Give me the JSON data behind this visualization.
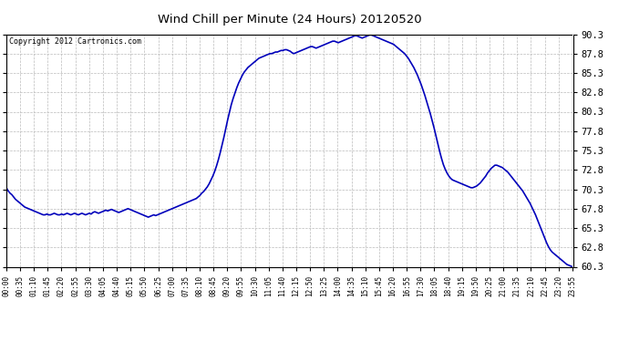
{
  "title": "Wind Chill per Minute (24 Hours) 20120520",
  "copyright": "Copyright 2012 Cartronics.com",
  "line_color": "#0000bb",
  "background_color": "#ffffff",
  "grid_color": "#bbbbbb",
  "ylim": [
    60.3,
    90.3
  ],
  "yticks": [
    60.3,
    62.8,
    65.3,
    67.8,
    70.3,
    72.8,
    75.3,
    77.8,
    80.3,
    82.8,
    85.3,
    87.8,
    90.3
  ],
  "xtick_labels": [
    "00:00",
    "00:35",
    "01:10",
    "01:45",
    "02:20",
    "02:55",
    "03:30",
    "04:05",
    "04:40",
    "05:15",
    "05:50",
    "06:25",
    "07:00",
    "07:35",
    "08:10",
    "08:45",
    "09:20",
    "09:55",
    "10:30",
    "11:05",
    "11:40",
    "12:15",
    "12:50",
    "13:25",
    "14:00",
    "14:35",
    "15:10",
    "15:45",
    "16:20",
    "16:55",
    "17:30",
    "18:05",
    "18:40",
    "19:15",
    "19:50",
    "20:25",
    "21:00",
    "21:35",
    "22:10",
    "22:45",
    "23:20",
    "23:55"
  ],
  "data_points": [
    [
      0,
      70.5
    ],
    [
      20,
      70.1
    ],
    [
      40,
      69.8
    ],
    [
      60,
      69.6
    ],
    [
      80,
      69.3
    ],
    [
      100,
      69.0
    ],
    [
      120,
      68.8
    ],
    [
      140,
      68.6
    ],
    [
      160,
      68.4
    ],
    [
      180,
      68.2
    ],
    [
      200,
      68.0
    ],
    [
      220,
      67.9
    ],
    [
      240,
      67.8
    ],
    [
      260,
      67.7
    ],
    [
      280,
      67.6
    ],
    [
      300,
      67.5
    ],
    [
      320,
      67.4
    ],
    [
      340,
      67.3
    ],
    [
      360,
      67.2
    ],
    [
      380,
      67.1
    ],
    [
      400,
      67.0
    ],
    [
      420,
      67.0
    ],
    [
      440,
      67.1
    ],
    [
      460,
      67.0
    ],
    [
      480,
      67.0
    ],
    [
      500,
      67.1
    ],
    [
      520,
      67.2
    ],
    [
      540,
      67.1
    ],
    [
      560,
      67.0
    ],
    [
      580,
      67.0
    ],
    [
      600,
      67.1
    ],
    [
      620,
      67.0
    ],
    [
      640,
      67.1
    ],
    [
      660,
      67.2
    ],
    [
      680,
      67.1
    ],
    [
      700,
      67.0
    ],
    [
      720,
      67.1
    ],
    [
      740,
      67.2
    ],
    [
      760,
      67.1
    ],
    [
      780,
      67.0
    ],
    [
      800,
      67.1
    ],
    [
      820,
      67.2
    ],
    [
      840,
      67.1
    ],
    [
      860,
      67.0
    ],
    [
      880,
      67.1
    ],
    [
      900,
      67.2
    ],
    [
      920,
      67.1
    ],
    [
      940,
      67.3
    ],
    [
      960,
      67.4
    ],
    [
      980,
      67.3
    ],
    [
      1000,
      67.2
    ],
    [
      1020,
      67.3
    ],
    [
      1040,
      67.4
    ],
    [
      1060,
      67.5
    ],
    [
      1080,
      67.6
    ],
    [
      1100,
      67.5
    ],
    [
      1120,
      67.6
    ],
    [
      1140,
      67.7
    ],
    [
      1160,
      67.6
    ],
    [
      1180,
      67.5
    ],
    [
      1200,
      67.4
    ],
    [
      1220,
      67.3
    ],
    [
      1240,
      67.4
    ],
    [
      1260,
      67.5
    ],
    [
      1280,
      67.6
    ],
    [
      1300,
      67.7
    ],
    [
      1320,
      67.8
    ],
    [
      1340,
      67.7
    ],
    [
      1360,
      67.6
    ],
    [
      1380,
      67.5
    ],
    [
      1400,
      67.4
    ],
    [
      1420,
      67.3
    ],
    [
      1440,
      67.2
    ],
    [
      1460,
      67.1
    ],
    [
      1480,
      67.0
    ],
    [
      1500,
      66.9
    ],
    [
      1520,
      66.8
    ],
    [
      1540,
      66.7
    ],
    [
      1560,
      66.8
    ],
    [
      1580,
      66.9
    ],
    [
      1600,
      67.0
    ],
    [
      1620,
      66.9
    ],
    [
      1640,
      67.0
    ],
    [
      1660,
      67.1
    ],
    [
      1680,
      67.2
    ],
    [
      1700,
      67.3
    ],
    [
      1720,
      67.4
    ],
    [
      1740,
      67.5
    ],
    [
      1760,
      67.6
    ],
    [
      1780,
      67.7
    ],
    [
      1800,
      67.8
    ],
    [
      1820,
      67.9
    ],
    [
      1840,
      68.0
    ],
    [
      1860,
      68.1
    ],
    [
      1880,
      68.2
    ],
    [
      1900,
      68.3
    ],
    [
      1920,
      68.4
    ],
    [
      1940,
      68.5
    ],
    [
      1960,
      68.6
    ],
    [
      1980,
      68.7
    ],
    [
      2000,
      68.8
    ],
    [
      2020,
      68.9
    ],
    [
      2040,
      69.0
    ],
    [
      2060,
      69.1
    ],
    [
      2080,
      69.3
    ],
    [
      2100,
      69.5
    ],
    [
      2120,
      69.8
    ],
    [
      2140,
      70.0
    ],
    [
      2160,
      70.3
    ],
    [
      2180,
      70.6
    ],
    [
      2200,
      71.0
    ],
    [
      2220,
      71.5
    ],
    [
      2240,
      72.0
    ],
    [
      2260,
      72.6
    ],
    [
      2280,
      73.3
    ],
    [
      2300,
      74.1
    ],
    [
      2320,
      75.0
    ],
    [
      2340,
      76.0
    ],
    [
      2360,
      77.0
    ],
    [
      2380,
      78.1
    ],
    [
      2400,
      79.2
    ],
    [
      2420,
      80.2
    ],
    [
      2440,
      81.2
    ],
    [
      2460,
      82.0
    ],
    [
      2480,
      82.7
    ],
    [
      2500,
      83.4
    ],
    [
      2520,
      84.0
    ],
    [
      2540,
      84.5
    ],
    [
      2560,
      85.0
    ],
    [
      2580,
      85.4
    ],
    [
      2600,
      85.7
    ],
    [
      2620,
      86.0
    ],
    [
      2640,
      86.2
    ],
    [
      2660,
      86.4
    ],
    [
      2680,
      86.6
    ],
    [
      2700,
      86.8
    ],
    [
      2720,
      87.0
    ],
    [
      2740,
      87.2
    ],
    [
      2760,
      87.3
    ],
    [
      2780,
      87.4
    ],
    [
      2800,
      87.5
    ],
    [
      2820,
      87.6
    ],
    [
      2840,
      87.7
    ],
    [
      2860,
      87.8
    ],
    [
      2880,
      87.8
    ],
    [
      2900,
      87.9
    ],
    [
      2920,
      88.0
    ],
    [
      2940,
      88.0
    ],
    [
      2960,
      88.1
    ],
    [
      2980,
      88.2
    ],
    [
      3000,
      88.2
    ],
    [
      3020,
      88.3
    ],
    [
      3040,
      88.3
    ],
    [
      3060,
      88.2
    ],
    [
      3080,
      88.1
    ],
    [
      3100,
      87.9
    ],
    [
      3120,
      87.8
    ],
    [
      3140,
      87.9
    ],
    [
      3160,
      88.0
    ],
    [
      3180,
      88.1
    ],
    [
      3200,
      88.2
    ],
    [
      3220,
      88.3
    ],
    [
      3240,
      88.4
    ],
    [
      3260,
      88.5
    ],
    [
      3280,
      88.6
    ],
    [
      3300,
      88.7
    ],
    [
      3320,
      88.7
    ],
    [
      3340,
      88.6
    ],
    [
      3360,
      88.5
    ],
    [
      3380,
      88.6
    ],
    [
      3400,
      88.7
    ],
    [
      3420,
      88.8
    ],
    [
      3440,
      88.9
    ],
    [
      3460,
      89.0
    ],
    [
      3480,
      89.1
    ],
    [
      3500,
      89.2
    ],
    [
      3520,
      89.3
    ],
    [
      3540,
      89.4
    ],
    [
      3560,
      89.4
    ],
    [
      3580,
      89.3
    ],
    [
      3600,
      89.2
    ],
    [
      3620,
      89.3
    ],
    [
      3640,
      89.4
    ],
    [
      3660,
      89.5
    ],
    [
      3680,
      89.6
    ],
    [
      3700,
      89.7
    ],
    [
      3720,
      89.8
    ],
    [
      3740,
      89.9
    ],
    [
      3760,
      90.0
    ],
    [
      3780,
      90.1
    ],
    [
      3800,
      90.1
    ],
    [
      3820,
      90.0
    ],
    [
      3840,
      89.9
    ],
    [
      3860,
      89.8
    ],
    [
      3880,
      89.9
    ],
    [
      3900,
      90.0
    ],
    [
      3920,
      90.1
    ],
    [
      3940,
      90.2
    ],
    [
      3960,
      90.2
    ],
    [
      3980,
      90.1
    ],
    [
      4000,
      90.0
    ],
    [
      4020,
      89.9
    ],
    [
      4040,
      89.8
    ],
    [
      4060,
      89.7
    ],
    [
      4080,
      89.6
    ],
    [
      4100,
      89.5
    ],
    [
      4120,
      89.4
    ],
    [
      4140,
      89.3
    ],
    [
      4160,
      89.2
    ],
    [
      4180,
      89.1
    ],
    [
      4200,
      89.0
    ],
    [
      4220,
      88.8
    ],
    [
      4240,
      88.6
    ],
    [
      4260,
      88.4
    ],
    [
      4280,
      88.2
    ],
    [
      4300,
      88.0
    ],
    [
      4320,
      87.8
    ],
    [
      4340,
      87.5
    ],
    [
      4360,
      87.2
    ],
    [
      4380,
      86.8
    ],
    [
      4400,
      86.4
    ],
    [
      4420,
      86.0
    ],
    [
      4440,
      85.5
    ],
    [
      4460,
      85.0
    ],
    [
      4480,
      84.4
    ],
    [
      4500,
      83.8
    ],
    [
      4520,
      83.1
    ],
    [
      4540,
      82.4
    ],
    [
      4560,
      81.6
    ],
    [
      4580,
      80.8
    ],
    [
      4600,
      80.0
    ],
    [
      4620,
      79.1
    ],
    [
      4640,
      78.2
    ],
    [
      4660,
      77.2
    ],
    [
      4680,
      76.2
    ],
    [
      4700,
      75.2
    ],
    [
      4720,
      74.3
    ],
    [
      4740,
      73.5
    ],
    [
      4760,
      72.9
    ],
    [
      4780,
      72.4
    ],
    [
      4800,
      72.0
    ],
    [
      4820,
      71.7
    ],
    [
      4840,
      71.5
    ],
    [
      4860,
      71.4
    ],
    [
      4880,
      71.3
    ],
    [
      4900,
      71.2
    ],
    [
      4920,
      71.1
    ],
    [
      4940,
      71.0
    ],
    [
      4960,
      70.9
    ],
    [
      4980,
      70.8
    ],
    [
      5000,
      70.7
    ],
    [
      5020,
      70.6
    ],
    [
      5040,
      70.5
    ],
    [
      5060,
      70.5
    ],
    [
      5080,
      70.6
    ],
    [
      5100,
      70.7
    ],
    [
      5120,
      70.9
    ],
    [
      5140,
      71.1
    ],
    [
      5160,
      71.4
    ],
    [
      5180,
      71.7
    ],
    [
      5200,
      72.0
    ],
    [
      5220,
      72.4
    ],
    [
      5240,
      72.7
    ],
    [
      5260,
      73.0
    ],
    [
      5280,
      73.2
    ],
    [
      5300,
      73.4
    ],
    [
      5320,
      73.4
    ],
    [
      5340,
      73.3
    ],
    [
      5360,
      73.2
    ],
    [
      5380,
      73.1
    ],
    [
      5400,
      72.9
    ],
    [
      5420,
      72.7
    ],
    [
      5440,
      72.5
    ],
    [
      5460,
      72.2
    ],
    [
      5480,
      71.9
    ],
    [
      5500,
      71.6
    ],
    [
      5520,
      71.3
    ],
    [
      5540,
      71.0
    ],
    [
      5560,
      70.7
    ],
    [
      5580,
      70.4
    ],
    [
      5600,
      70.1
    ],
    [
      5620,
      69.7
    ],
    [
      5640,
      69.3
    ],
    [
      5660,
      68.9
    ],
    [
      5680,
      68.5
    ],
    [
      5700,
      68.0
    ],
    [
      5720,
      67.5
    ],
    [
      5740,
      67.0
    ],
    [
      5760,
      66.4
    ],
    [
      5780,
      65.8
    ],
    [
      5800,
      65.2
    ],
    [
      5820,
      64.6
    ],
    [
      5840,
      64.0
    ],
    [
      5860,
      63.4
    ],
    [
      5880,
      62.9
    ],
    [
      5900,
      62.5
    ],
    [
      5920,
      62.2
    ],
    [
      5940,
      62.0
    ],
    [
      5960,
      61.8
    ],
    [
      5980,
      61.6
    ],
    [
      6000,
      61.4
    ],
    [
      6020,
      61.2
    ],
    [
      6040,
      61.0
    ],
    [
      6060,
      60.8
    ],
    [
      6080,
      60.6
    ],
    [
      6100,
      60.5
    ],
    [
      6120,
      60.4
    ],
    [
      6140,
      60.3
    ]
  ]
}
